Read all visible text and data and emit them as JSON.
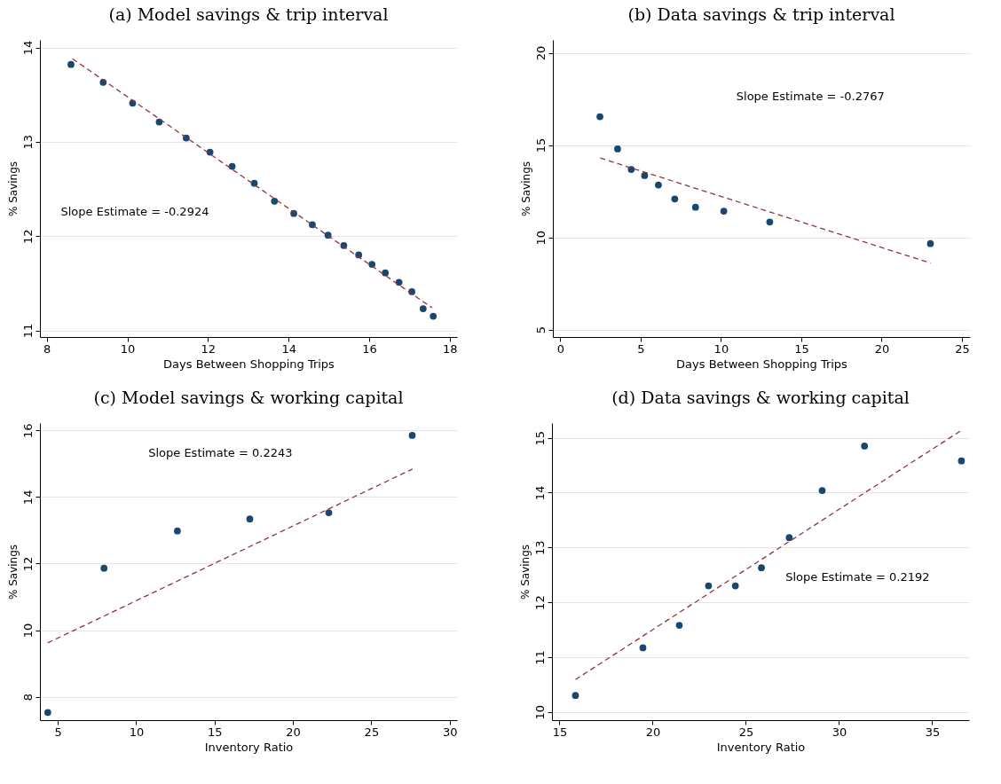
{
  "chart_data": [
    {
      "type": "scatter",
      "title": "(a) Model savings & trip interval",
      "xlabel": "Days Between Shopping Trips",
      "ylabel": "% Savings",
      "xlim": [
        7.83,
        18.18
      ],
      "xticks": [
        8,
        10,
        12,
        14,
        16,
        18
      ],
      "ylim": [
        10.93,
        14.08
      ],
      "yticks": [
        11,
        12,
        13,
        14
      ],
      "grid": "y",
      "annotations": [
        "Slope Estimate = -0.2924"
      ],
      "series": [
        {
          "marker": "circle",
          "color": "#1a476f",
          "x": [
            8.6,
            9.4,
            10.13,
            10.79,
            11.46,
            12.05,
            12.6,
            13.15,
            13.65,
            14.13,
            14.59,
            14.98,
            15.37,
            15.74,
            16.07,
            16.4,
            16.74,
            17.06,
            17.34,
            17.59
          ],
          "values": [
            13.82,
            13.63,
            13.41,
            13.21,
            13.04,
            12.89,
            12.74,
            12.56,
            12.37,
            12.24,
            12.12,
            12.01,
            11.9,
            11.8,
            11.7,
            11.61,
            11.51,
            11.41,
            11.23,
            11.15
          ]
        },
        {
          "type": "line",
          "line_style": "dashed",
          "color": "#90353b",
          "x": [
            8.64,
            17.56
          ],
          "values": [
            13.88,
            11.24
          ]
        }
      ]
    },
    {
      "type": "scatter",
      "title": "(b) Data savings & trip interval",
      "xlabel": "Days Between Shopping Trips",
      "ylabel": "% Savings",
      "xlim": [
        -0.46,
        25.5
      ],
      "xticks": [
        0,
        5,
        10,
        15,
        20,
        25
      ],
      "ylim": [
        4.6,
        20.7
      ],
      "yticks": [
        5,
        10,
        15,
        20
      ],
      "grid": "y",
      "annotations": [
        "Slope Estimate = -0.2767"
      ],
      "series": [
        {
          "marker": "circle",
          "color": "#1a476f",
          "x": [
            2.47,
            3.57,
            4.42,
            5.25,
            6.11,
            7.13,
            8.42,
            10.18,
            13.04,
            23.04
          ],
          "values": [
            16.54,
            14.79,
            13.68,
            13.35,
            12.84,
            12.08,
            11.63,
            11.42,
            10.83,
            9.66
          ]
        },
        {
          "type": "line",
          "line_style": "dashed",
          "color": "#90353b",
          "x": [
            2.49,
            23.04
          ],
          "values": [
            14.3,
            8.61
          ]
        }
      ]
    },
    {
      "type": "scatter",
      "title": "(c) Model savings & working capital",
      "xlabel": "Inventory Ratio",
      "ylabel": "% Savings",
      "xlim": [
        3.86,
        30.47
      ],
      "xticks": [
        5,
        10,
        15,
        20,
        25,
        30
      ],
      "ylim": [
        7.3,
        16.22
      ],
      "yticks": [
        8,
        10,
        12,
        14,
        16
      ],
      "grid": "y",
      "annotations": [
        "Slope Estimate = 0.2243"
      ],
      "series": [
        {
          "marker": "circle",
          "color": "#1a476f",
          "x": [
            4.36,
            7.95,
            12.63,
            17.25,
            22.29,
            27.61
          ],
          "values": [
            7.53,
            11.86,
            12.98,
            13.34,
            13.53,
            15.85
          ]
        },
        {
          "type": "line",
          "line_style": "dashed",
          "color": "#90353b",
          "x": [
            4.36,
            27.63
          ],
          "values": [
            9.62,
            14.84
          ]
        }
      ]
    },
    {
      "type": "scatter",
      "title": "(d) Data savings & working capital",
      "xlabel": "Inventory Ratio",
      "ylabel": "% Savings",
      "xlim": [
        14.6,
        36.98
      ],
      "xticks": [
        15,
        20,
        25,
        30,
        35
      ],
      "ylim": [
        9.85,
        15.27
      ],
      "yticks": [
        10,
        11,
        12,
        13,
        14,
        15
      ],
      "grid": "y",
      "annotations": [
        "Slope Estimate = 0.2192"
      ],
      "series": [
        {
          "marker": "circle",
          "color": "#1a476f",
          "x": [
            15.86,
            19.48,
            21.43,
            23.0,
            24.44,
            25.84,
            27.33,
            29.1,
            31.37,
            36.57
          ],
          "values": [
            10.3,
            11.17,
            11.58,
            12.3,
            12.3,
            12.63,
            13.18,
            14.04,
            14.85,
            14.58
          ]
        },
        {
          "type": "line",
          "line_style": "dashed",
          "color": "#90353b",
          "x": [
            15.86,
            36.54
          ],
          "values": [
            10.59,
            15.13
          ]
        }
      ]
    }
  ]
}
